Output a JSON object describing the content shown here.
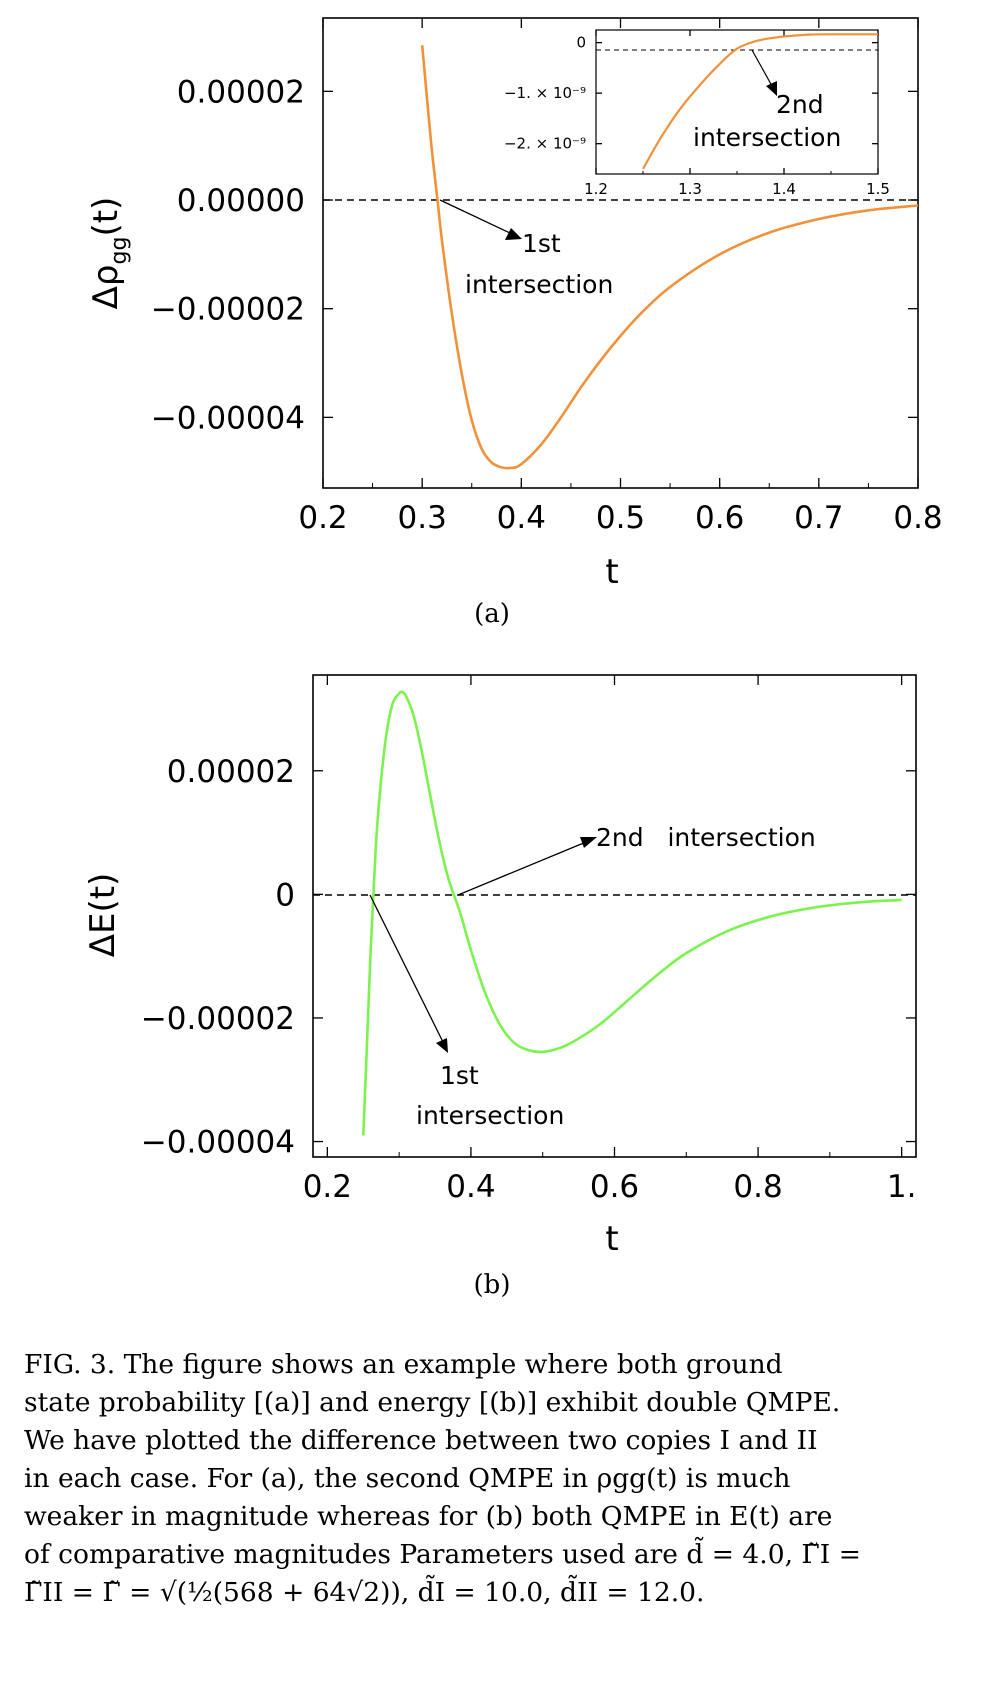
{
  "colors": {
    "curve_a": "#f0923a",
    "curve_b": "#7cf24f",
    "axis": "#000000"
  },
  "panel_a": {
    "sublabel": "(a)",
    "ylabel_main": "Δρ",
    "ylabel_sub": "gg",
    "ylabel_tail": "(t)",
    "xlabel": "t",
    "annotation_1_line1": "1st",
    "annotation_1_line2": "intersection",
    "inset": {
      "annotation_line1": "2nd",
      "annotation_line2": "intersection"
    }
  },
  "panel_b": {
    "sublabel": "(b)",
    "ylabel": "ΔE(t)",
    "xlabel": "t",
    "annotation_1_line1": "1st",
    "annotation_1_line2": "intersection",
    "annotation_2": "2nd   intersection"
  },
  "chart_data": [
    {
      "type": "line",
      "panel": "a",
      "xlabel": "t",
      "ylabel": "Δρgg(t)",
      "xlim": [
        0.2,
        0.8
      ],
      "ylim": [
        -5.3e-05,
        3.35e-05
      ],
      "xticks": [
        0.2,
        0.3,
        0.4,
        0.5,
        0.6,
        0.7,
        0.8
      ],
      "xtick_labels": [
        "0.2",
        "0.3",
        "0.4",
        "0.5",
        "0.6",
        "0.7",
        "0.8"
      ],
      "yticks": [
        2e-05,
        0.0,
        -2e-05,
        -4e-05
      ],
      "ytick_labels": [
        "0.00002",
        "0.00000",
        "−0.00002",
        "−0.00004"
      ],
      "reference_line": {
        "y": 0,
        "style": "dashed"
      },
      "series": [
        {
          "x": [
            0.3,
            0.305,
            0.31,
            0.3155,
            0.32,
            0.33,
            0.34,
            0.35,
            0.36,
            0.37,
            0.38,
            0.39,
            0.4,
            0.42,
            0.44,
            0.46,
            0.48,
            0.5,
            0.52,
            0.55,
            0.6,
            0.65,
            0.7,
            0.75,
            0.8
          ],
          "y": [
            2.85e-05,
            1.85e-05,
            8.8e-06,
            0.0,
            -7.5e-06,
            -2.1e-05,
            -3.2e-05,
            -4.05e-05,
            -4.58e-05,
            -4.83e-05,
            -4.92e-05,
            -4.93e-05,
            -4.86e-05,
            -4.5e-05,
            -4e-05,
            -3.45e-05,
            -2.95e-05,
            -2.5e-05,
            -2.1e-05,
            -1.6e-05,
            -1e-05,
            -6e-06,
            -3.5e-06,
            -1.9e-06,
            -1e-06
          ]
        }
      ]
    },
    {
      "type": "line",
      "panel": "a-inset",
      "xlim": [
        1.2,
        1.5
      ],
      "ylim": [
        -2.6e-09,
        2.5e-10
      ],
      "xticks": [
        1.2,
        1.3,
        1.4,
        1.5
      ],
      "xtick_labels": [
        "1.2",
        "1.3",
        "1.4",
        "1.5"
      ],
      "yticks": [
        0,
        -1e-09,
        -2e-09
      ],
      "ytick_labels": [
        "0",
        "−1. × 10⁻⁹",
        "−2. × 10⁻⁹"
      ],
      "reference_line": {
        "y": 0,
        "style": "dashed"
      },
      "series": [
        {
          "x": [
            1.25,
            1.27,
            1.29,
            1.31,
            1.33,
            1.35,
            1.37,
            1.39,
            1.41,
            1.43,
            1.45,
            1.47,
            1.49,
            1.5
          ],
          "y": [
            -2.5e-09,
            -1.85e-09,
            -1.3e-09,
            -8.5e-10,
            -4.5e-10,
            -1.2e-10,
            3e-11,
            1e-10,
            1.4e-10,
            1.6e-10,
            1.65e-10,
            1.65e-10,
            1.65e-10,
            1.65e-10
          ]
        }
      ]
    },
    {
      "type": "line",
      "panel": "b",
      "xlabel": "t",
      "ylabel": "ΔE(t)",
      "xlim": [
        0.18,
        1.02
      ],
      "ylim": [
        -4.25e-05,
        3.55e-05
      ],
      "xticks": [
        0.2,
        0.4,
        0.6,
        0.8,
        1.0
      ],
      "xtick_labels": [
        "0.2",
        "0.4",
        "0.6",
        "0.8",
        "1."
      ],
      "yticks": [
        2e-05,
        0.0,
        -2e-05,
        -4e-05
      ],
      "ytick_labels": [
        "0.00002",
        "0",
        "−0.00002",
        "−0.00004"
      ],
      "reference_line": {
        "y": 0,
        "style": "dashed"
      },
      "series": [
        {
          "x": [
            0.25,
            0.255,
            0.26,
            0.265,
            0.27,
            0.28,
            0.29,
            0.3,
            0.305,
            0.31,
            0.32,
            0.33,
            0.34,
            0.35,
            0.36,
            0.37,
            0.385,
            0.4,
            0.42,
            0.44,
            0.46,
            0.48,
            0.5,
            0.52,
            0.54,
            0.58,
            0.62,
            0.66,
            0.7,
            0.76,
            0.82,
            0.88,
            0.94,
            1.0
          ],
          "y": [
            -3.9e-05,
            -2.5e-05,
            -1e-05,
            2e-06,
            1.2e-05,
            2.4e-05,
            3.05e-05,
            3.25e-05,
            3.27e-05,
            3.2e-05,
            2.9e-05,
            2.4e-05,
            1.8e-05,
            1.2e-05,
            6.5e-06,
            2e-06,
            -3e-06,
            -9e-06,
            -1.6e-05,
            -2.1e-05,
            -2.4e-05,
            -2.52e-05,
            -2.55e-05,
            -2.5e-05,
            -2.4e-05,
            -2.1e-05,
            -1.7e-05,
            -1.3e-05,
            -9.5e-06,
            -5.8e-06,
            -3.5e-06,
            -2.1e-06,
            -1.3e-06,
            -9e-07
          ]
        }
      ]
    }
  ],
  "caption": {
    "line1": "FIG. 3.   The figure shows an example where both ground",
    "line2": "state probability [(a)] and energy [(b)] exhibit double QMPE.",
    "line3": "We have plotted the difference between two copies I and II",
    "line4": "in each case.  For (a), the second QMPE in ρgg(t) is much",
    "line5": "weaker in magnitude whereas for (b) both QMPE in E(t) are",
    "line6": "of comparative magnitudes Parameters used are d̃ = 4.0, Γ̃I =",
    "line7": "Γ̃II = Γ̃ = √(½(568 + 64√2)), d̃I = 10.0, d̃II = 12.0."
  }
}
